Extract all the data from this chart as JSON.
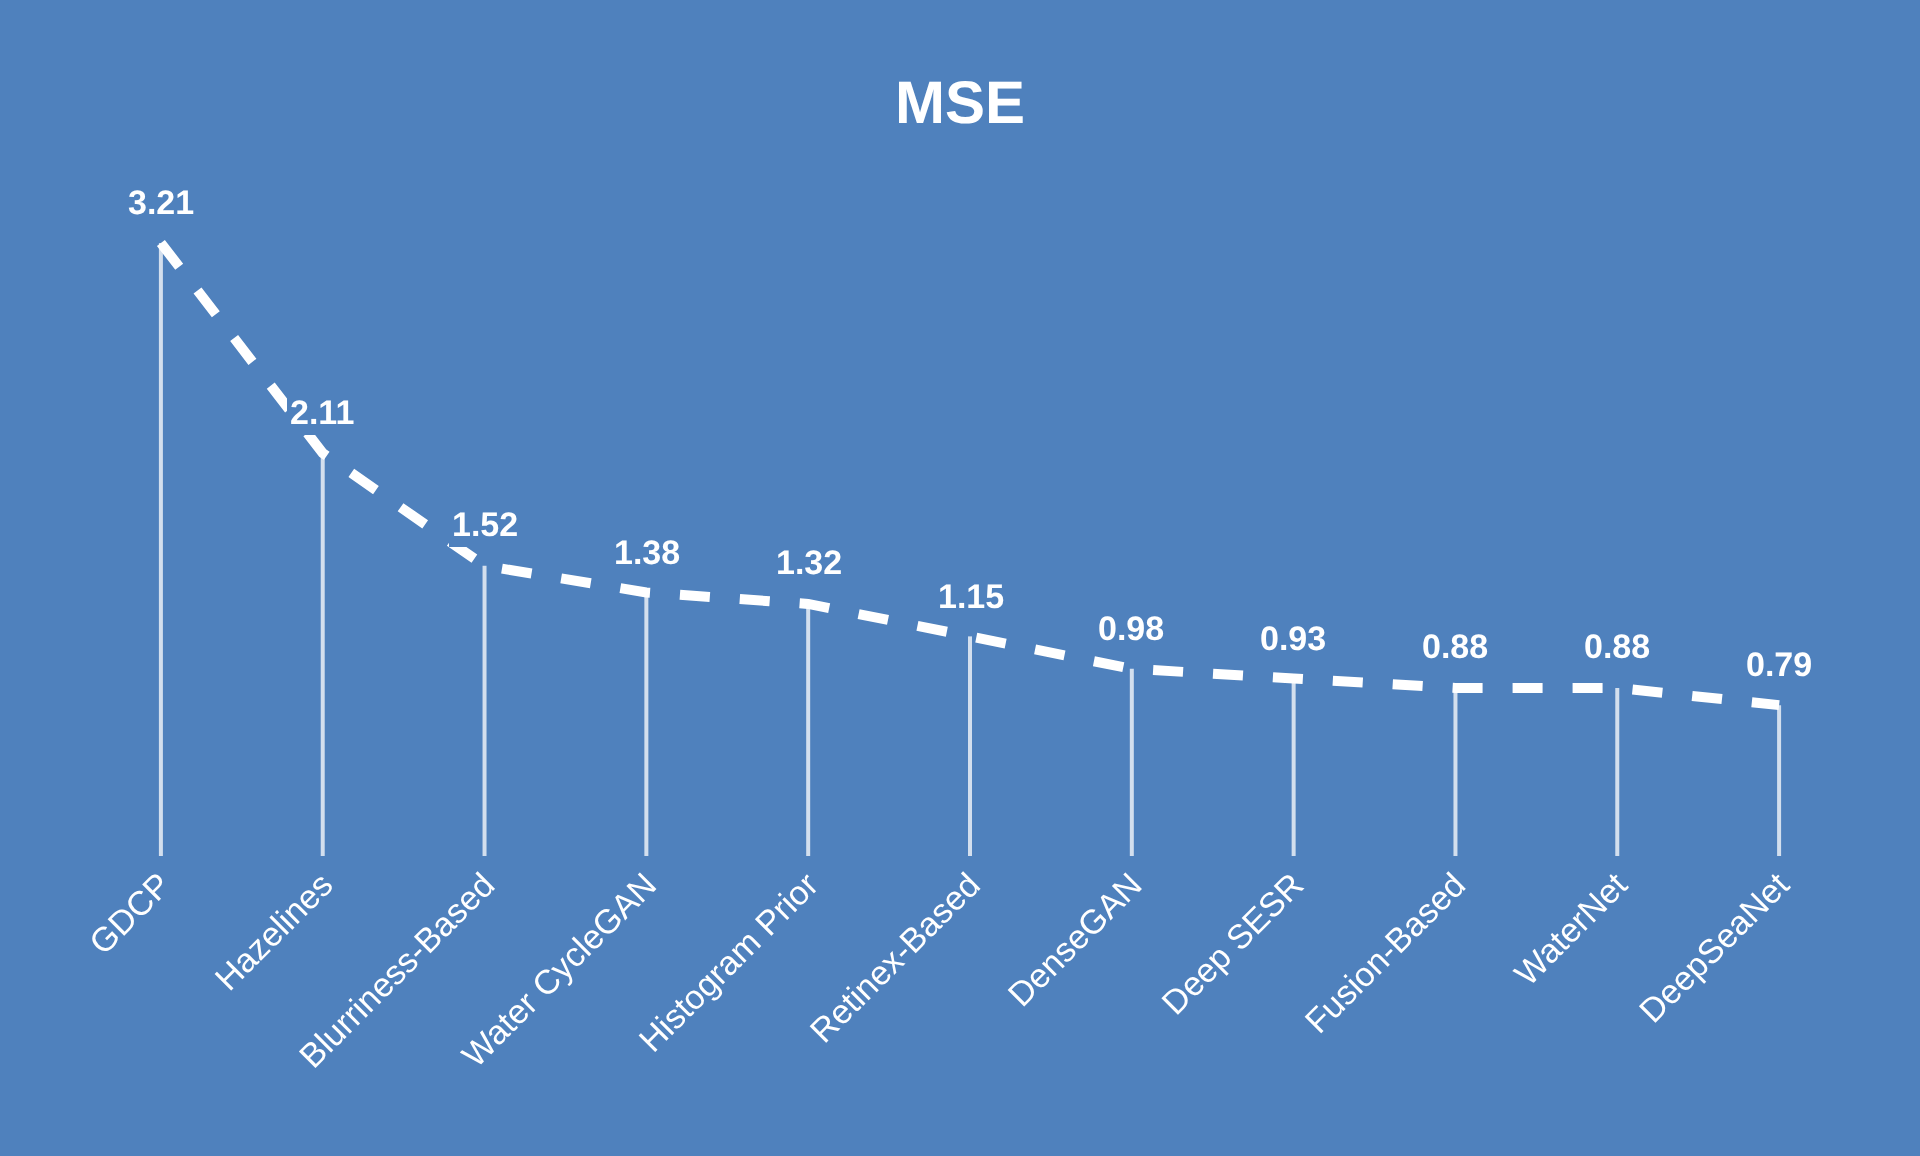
{
  "chart_data": {
    "type": "line",
    "title": "MSE",
    "categories": [
      "GDCP",
      "Hazelines",
      "Blurriness-Based",
      "Water CycleGAN",
      "Histogram Prior",
      "Retinex-Based",
      "DenseGAN",
      "Deep SESR",
      "Fusion-Based",
      "WaterNet",
      "DeepSeaNet"
    ],
    "series": [
      {
        "color": "#ffffff",
        "values": [
          3.21,
          2.11,
          1.52,
          1.38,
          1.32,
          1.15,
          0.98,
          0.93,
          0.88,
          0.88,
          0.79
        ]
      }
    ],
    "data_labels": true,
    "line_style": "dashed",
    "marker": "none"
  }
}
